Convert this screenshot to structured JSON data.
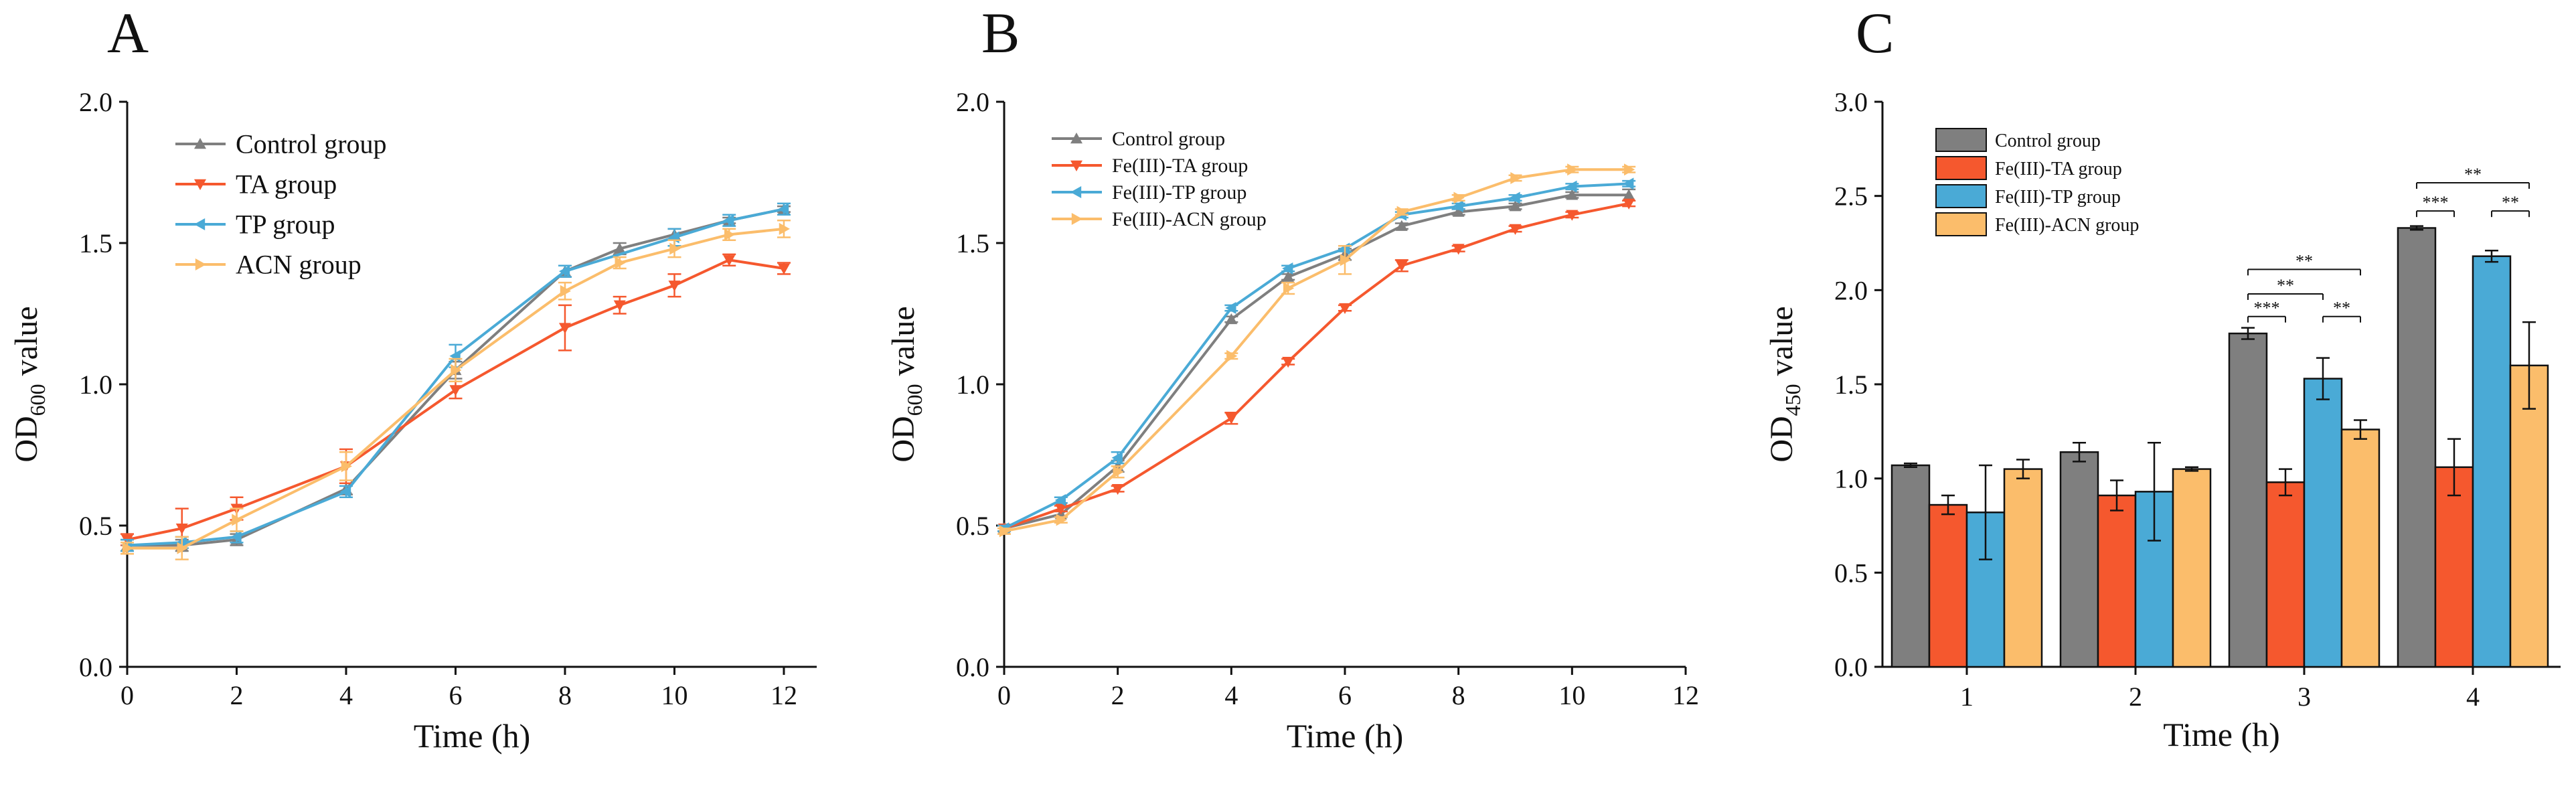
{
  "panels": [
    "A",
    "B",
    "C"
  ],
  "colors": {
    "control": "#7f7f7f",
    "ta": "#f5582e",
    "tp": "#4aaad6",
    "acn": "#fbbd6b",
    "axis": "#111111"
  },
  "chart_data": [
    {
      "panel": "A",
      "type": "line",
      "title": "",
      "xlabel": "Time (h)",
      "ylabel_main": "OD",
      "ylabel_sub": "600",
      "ylabel_tail": " value",
      "xlim": [
        0,
        12.6
      ],
      "ylim": [
        0,
        2.0
      ],
      "xticks": [
        0,
        2,
        4,
        6,
        8,
        10,
        12
      ],
      "yticks": [
        0.0,
        0.5,
        1.0,
        1.5,
        2.0
      ],
      "xtick_labels": [
        "0",
        "2",
        "4",
        "6",
        "8",
        "10",
        "12"
      ],
      "ytick_labels": [
        "0.0",
        "0.5",
        "1.0",
        "1.5",
        "2.0"
      ],
      "legend_position": "top-left",
      "series": [
        {
          "name": "Control group",
          "color": "#7f7f7f",
          "marker": "triangle-up",
          "x": [
            0,
            1,
            2,
            4,
            6,
            8,
            9,
            10,
            11,
            12
          ],
          "y": [
            0.43,
            0.43,
            0.45,
            0.63,
            1.05,
            1.4,
            1.48,
            1.53,
            1.58,
            1.62
          ],
          "err": [
            0.02,
            0.02,
            0.02,
            0.02,
            0.03,
            0.02,
            0.02,
            0.02,
            0.01,
            0.01
          ]
        },
        {
          "name": "TA group",
          "color": "#f5582e",
          "marker": "triangle-down",
          "x": [
            0,
            1,
            2,
            4,
            6,
            8,
            9,
            10,
            11,
            12
          ],
          "y": [
            0.45,
            0.49,
            0.56,
            0.71,
            0.98,
            1.2,
            1.28,
            1.35,
            1.44,
            1.41
          ],
          "err": [
            0.02,
            0.07,
            0.04,
            0.06,
            0.03,
            0.08,
            0.03,
            0.04,
            0.02,
            0.02
          ]
        },
        {
          "name": "TP group",
          "color": "#4aaad6",
          "marker": "triangle-left",
          "x": [
            0,
            1,
            2,
            4,
            6,
            8,
            10,
            11,
            12
          ],
          "y": [
            0.43,
            0.44,
            0.46,
            0.62,
            1.1,
            1.4,
            1.52,
            1.58,
            1.62
          ],
          "err": [
            0.02,
            0.02,
            0.02,
            0.02,
            0.04,
            0.02,
            0.03,
            0.02,
            0.02
          ]
        },
        {
          "name": "ACN group",
          "color": "#fbbd6b",
          "marker": "triangle-right",
          "x": [
            0,
            1,
            2,
            4,
            6,
            8,
            9,
            10,
            11,
            12
          ],
          "y": [
            0.42,
            0.42,
            0.52,
            0.71,
            1.05,
            1.33,
            1.43,
            1.48,
            1.53,
            1.55
          ],
          "err": [
            0.02,
            0.04,
            0.04,
            0.05,
            0.04,
            0.03,
            0.02,
            0.03,
            0.02,
            0.03
          ]
        }
      ]
    },
    {
      "panel": "B",
      "type": "line",
      "title": "",
      "xlabel": "Time (h)",
      "ylabel_main": "OD",
      "ylabel_sub": "600",
      "ylabel_tail": " value",
      "xlim": [
        0,
        12
      ],
      "ylim": [
        0,
        2.0
      ],
      "xticks": [
        0,
        2,
        4,
        6,
        8,
        10,
        12
      ],
      "yticks": [
        0.0,
        0.5,
        1.0,
        1.5,
        2.0
      ],
      "xtick_labels": [
        "0",
        "2",
        "4",
        "6",
        "8",
        "10",
        "12"
      ],
      "ytick_labels": [
        "0.0",
        "0.5",
        "1.0",
        "1.5",
        "2.0"
      ],
      "legend_position": "top-left",
      "series": [
        {
          "name": "Control group",
          "color": "#7f7f7f",
          "marker": "triangle-up",
          "x": [
            0,
            1,
            2,
            4,
            5,
            6,
            7,
            8,
            9,
            10,
            11
          ],
          "y": [
            0.49,
            0.54,
            0.71,
            1.23,
            1.38,
            1.46,
            1.56,
            1.61,
            1.63,
            1.67,
            1.67
          ],
          "err": [
            0.01,
            0.01,
            0.02,
            0.01,
            0.01,
            0.02,
            0.01,
            0.01,
            0.01,
            0.01,
            0.02
          ]
        },
        {
          "name": "Fe(III)-TA group",
          "color": "#f5582e",
          "marker": "triangle-down",
          "x": [
            0,
            1,
            2,
            4,
            5,
            6,
            7,
            8,
            9,
            10,
            11
          ],
          "y": [
            0.49,
            0.56,
            0.63,
            0.88,
            1.08,
            1.27,
            1.42,
            1.48,
            1.55,
            1.6,
            1.64
          ],
          "err": [
            0.01,
            0.01,
            0.01,
            0.02,
            0.01,
            0.01,
            0.02,
            0.01,
            0.01,
            0.01,
            0.01
          ]
        },
        {
          "name": "Fe(III)-TP group",
          "color": "#4aaad6",
          "marker": "triangle-left",
          "x": [
            0,
            1,
            2,
            4,
            5,
            6,
            7,
            8,
            9,
            10,
            11
          ],
          "y": [
            0.49,
            0.59,
            0.74,
            1.27,
            1.41,
            1.48,
            1.6,
            1.63,
            1.66,
            1.7,
            1.71
          ],
          "err": [
            0.01,
            0.01,
            0.02,
            0.01,
            0.01,
            0.01,
            0.01,
            0.01,
            0.01,
            0.01,
            0.01
          ]
        },
        {
          "name": "Fe(III)-ACN group",
          "color": "#fbbd6b",
          "marker": "triangle-right",
          "x": [
            0,
            1,
            2,
            4,
            5,
            6,
            7,
            8,
            9,
            10,
            11
          ],
          "y": [
            0.48,
            0.52,
            0.69,
            1.1,
            1.34,
            1.44,
            1.61,
            1.66,
            1.73,
            1.76,
            1.76
          ],
          "err": [
            0.01,
            0.01,
            0.02,
            0.01,
            0.02,
            0.05,
            0.01,
            0.01,
            0.01,
            0.01,
            0.01
          ]
        }
      ]
    },
    {
      "panel": "C",
      "type": "bar",
      "title": "",
      "xlabel": "Time (h)",
      "ylabel_main": "OD",
      "ylabel_sub": "450",
      "ylabel_tail": " value",
      "categories": [
        "1",
        "2",
        "3",
        "4"
      ],
      "ylim": [
        0,
        3.0
      ],
      "yticks": [
        0.0,
        0.5,
        1.0,
        1.5,
        2.0,
        2.5,
        3.0
      ],
      "ytick_labels": [
        "0.0",
        "0.5",
        "1.0",
        "1.5",
        "2.0",
        "2.5",
        "3.0"
      ],
      "legend_position": "top-left",
      "series": [
        {
          "name": "Control group",
          "color": "#7f7f7f",
          "values": [
            1.07,
            1.14,
            1.77,
            2.33
          ],
          "err": [
            0.01,
            0.05,
            0.03,
            0.01
          ]
        },
        {
          "name": "Fe(III)-TA group",
          "color": "#f5582e",
          "values": [
            0.86,
            0.91,
            0.98,
            1.06
          ],
          "err": [
            0.05,
            0.08,
            0.07,
            0.15
          ]
        },
        {
          "name": "Fe(III)-TP group",
          "color": "#4aaad6",
          "values": [
            0.82,
            0.93,
            1.53,
            2.18
          ],
          "err": [
            0.25,
            0.26,
            0.11,
            0.03
          ]
        },
        {
          "name": "Fe(III)-ACN group",
          "color": "#fbbd6b",
          "values": [
            1.05,
            1.05,
            1.26,
            1.6
          ],
          "err": [
            0.05,
            0.01,
            0.05,
            0.23
          ]
        }
      ],
      "annotations": [
        {
          "category": 2,
          "from": 0,
          "to": 1,
          "y": 1.86,
          "label": "***"
        },
        {
          "category": 2,
          "from": 0,
          "to": 2,
          "y": 1.98,
          "label": "**"
        },
        {
          "category": 2,
          "from": 0,
          "to": 3,
          "y": 2.11,
          "label": "**"
        },
        {
          "category": 2,
          "from": 2,
          "to": 3,
          "y": 1.86,
          "label": "**"
        },
        {
          "category": 3,
          "from": 0,
          "to": 1,
          "y": 2.42,
          "label": "***"
        },
        {
          "category": 3,
          "from": 0,
          "to": 3,
          "y": 2.57,
          "label": "**"
        },
        {
          "category": 3,
          "from": 2,
          "to": 3,
          "y": 2.42,
          "label": "**"
        }
      ]
    }
  ]
}
